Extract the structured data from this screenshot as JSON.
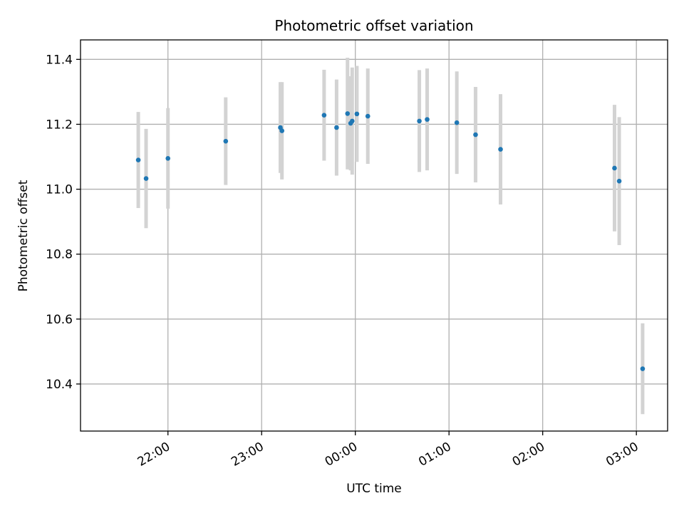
{
  "chart_data": {
    "type": "scatter",
    "title": "Photometric offset variation",
    "xlabel": "UTC time",
    "ylabel": "Photometric offset",
    "x_unit": "UTC (HH:MM), spanning midnight",
    "xlim": [
      "21:04",
      "03:20"
    ],
    "ylim": [
      10.255,
      11.46
    ],
    "x_ticks": [
      "22:00",
      "23:00",
      "00:00",
      "01:00",
      "02:00",
      "03:00"
    ],
    "y_ticks": [
      10.4,
      10.6,
      10.8,
      11.0,
      11.2,
      11.4
    ],
    "y_tick_labels": [
      "10.4",
      "10.6",
      "10.8",
      "11.0",
      "11.2",
      "11.4"
    ],
    "grid": true,
    "point_color": "#1f77b4",
    "errorbar_color": "#d3d3d3",
    "points": [
      {
        "x": "21:41",
        "y": 11.09,
        "err": 0.148
      },
      {
        "x": "21:46",
        "y": 11.033,
        "err": 0.153
      },
      {
        "x": "22:00",
        "y": 11.095,
        "err": 0.155
      },
      {
        "x": "22:37",
        "y": 11.148,
        "err": 0.135
      },
      {
        "x": "23:12",
        "y": 11.19,
        "err": 0.14
      },
      {
        "x": "23:13",
        "y": 11.18,
        "err": 0.15
      },
      {
        "x": "23:40",
        "y": 11.228,
        "err": 0.14
      },
      {
        "x": "23:48",
        "y": 11.19,
        "err": 0.148
      },
      {
        "x": "23:55",
        "y": 11.233,
        "err": 0.172
      },
      {
        "x": "23:57",
        "y": 11.203,
        "err": 0.145
      },
      {
        "x": "23:58",
        "y": 11.21,
        "err": 0.165
      },
      {
        "x": "00:01",
        "y": 11.232,
        "err": 0.148
      },
      {
        "x": "00:08",
        "y": 11.225,
        "err": 0.147
      },
      {
        "x": "00:41",
        "y": 11.21,
        "err": 0.157
      },
      {
        "x": "00:46",
        "y": 11.215,
        "err": 0.157
      },
      {
        "x": "01:05",
        "y": 11.205,
        "err": 0.158
      },
      {
        "x": "01:17",
        "y": 11.168,
        "err": 0.147
      },
      {
        "x": "01:33",
        "y": 11.123,
        "err": 0.17
      },
      {
        "x": "02:46",
        "y": 11.065,
        "err": 0.195
      },
      {
        "x": "02:49",
        "y": 11.025,
        "err": 0.197
      },
      {
        "x": "03:04",
        "y": 10.447,
        "err": 0.14
      }
    ]
  }
}
